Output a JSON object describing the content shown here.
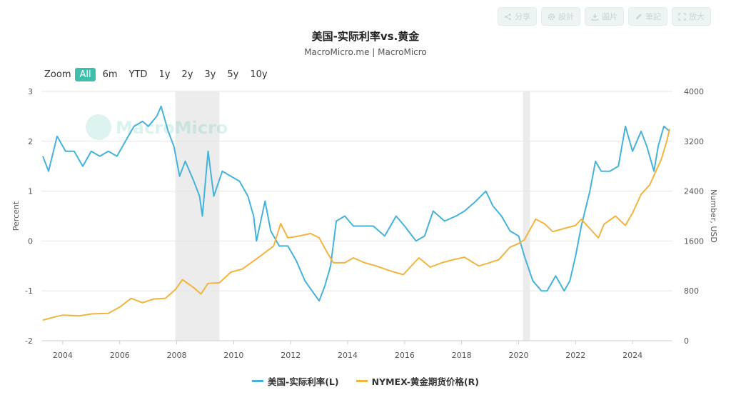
{
  "toolbar": [
    {
      "label": "分享",
      "icon": "share-icon"
    },
    {
      "label": "設計",
      "icon": "gear-icon"
    },
    {
      "label": "圖片",
      "icon": "download-icon"
    },
    {
      "label": "筆記",
      "icon": "pencil-icon"
    },
    {
      "label": "放大",
      "icon": "expand-icon"
    }
  ],
  "header": {
    "title": "美国-实际利率vs.黄金",
    "subtitle": "MacroMicro.me | MacroMicro"
  },
  "watermark": "MacroMicro",
  "zoom": {
    "label": "Zoom",
    "buttons": [
      "All",
      "6m",
      "YTD",
      "1y",
      "2y",
      "3y",
      "5y",
      "10y"
    ],
    "active": "All"
  },
  "colors": {
    "real_rate": "#45b3d9",
    "gold": "#f2b43c",
    "recession": "#ececec",
    "grid": "#e6e6e6",
    "zoom_active": "#3dbfae"
  },
  "chart_data": {
    "type": "line",
    "title": "美国-实际利率vs.黄金",
    "subtitle": "MacroMicro.me | MacroMicro",
    "x": {
      "range": [
        2003.25,
        2025.4
      ],
      "tick_labels": [
        "2004",
        "2006",
        "2008",
        "2010",
        "2012",
        "2014",
        "2016",
        "2018",
        "2020",
        "2022",
        "2024"
      ]
    },
    "y_left": {
      "label": "Percent",
      "range": [
        -2,
        3
      ],
      "tick_labels": [
        "-2",
        "-1",
        "0",
        "1",
        "2",
        "3"
      ]
    },
    "y_right": {
      "label": "Number, USD",
      "range": [
        0,
        4000
      ],
      "tick_labels": [
        "0",
        "800",
        "1600",
        "2400",
        "3200",
        "4000"
      ]
    },
    "shaded_periods": [
      [
        2007.95,
        2009.5
      ],
      [
        2020.15,
        2020.4
      ]
    ],
    "grid": true,
    "legend_position": "bottom",
    "series": [
      {
        "name": "美国-实际利率(L)",
        "axis": "left",
        "points": [
          [
            2003.3,
            1.7
          ],
          [
            2003.5,
            1.4
          ],
          [
            2003.8,
            2.1
          ],
          [
            2004.1,
            1.8
          ],
          [
            2004.4,
            1.8
          ],
          [
            2004.7,
            1.5
          ],
          [
            2005.0,
            1.8
          ],
          [
            2005.3,
            1.7
          ],
          [
            2005.6,
            1.8
          ],
          [
            2005.9,
            1.7
          ],
          [
            2006.2,
            2.0
          ],
          [
            2006.5,
            2.3
          ],
          [
            2006.8,
            2.4
          ],
          [
            2007.0,
            2.3
          ],
          [
            2007.3,
            2.5
          ],
          [
            2007.45,
            2.7
          ],
          [
            2007.7,
            2.2
          ],
          [
            2007.9,
            1.9
          ],
          [
            2008.1,
            1.3
          ],
          [
            2008.3,
            1.6
          ],
          [
            2008.6,
            1.2
          ],
          [
            2008.8,
            0.9
          ],
          [
            2008.9,
            0.5
          ],
          [
            2009.1,
            1.8
          ],
          [
            2009.3,
            0.9
          ],
          [
            2009.6,
            1.4
          ],
          [
            2009.9,
            1.3
          ],
          [
            2010.2,
            1.2
          ],
          [
            2010.5,
            0.9
          ],
          [
            2010.7,
            0.5
          ],
          [
            2010.8,
            0.0
          ],
          [
            2011.1,
            0.8
          ],
          [
            2011.3,
            0.2
          ],
          [
            2011.6,
            -0.1
          ],
          [
            2011.9,
            -0.1
          ],
          [
            2012.2,
            -0.4
          ],
          [
            2012.5,
            -0.8
          ],
          [
            2012.75,
            -1.0
          ],
          [
            2013.0,
            -1.2
          ],
          [
            2013.2,
            -0.9
          ],
          [
            2013.4,
            -0.5
          ],
          [
            2013.6,
            0.4
          ],
          [
            2013.9,
            0.5
          ],
          [
            2014.2,
            0.3
          ],
          [
            2014.5,
            0.3
          ],
          [
            2014.9,
            0.3
          ],
          [
            2015.3,
            0.1
          ],
          [
            2015.7,
            0.5
          ],
          [
            2016.0,
            0.3
          ],
          [
            2016.4,
            0.0
          ],
          [
            2016.7,
            0.1
          ],
          [
            2017.0,
            0.6
          ],
          [
            2017.4,
            0.4
          ],
          [
            2017.8,
            0.5
          ],
          [
            2018.1,
            0.6
          ],
          [
            2018.5,
            0.8
          ],
          [
            2018.85,
            1.0
          ],
          [
            2019.1,
            0.7
          ],
          [
            2019.4,
            0.5
          ],
          [
            2019.7,
            0.2
          ],
          [
            2020.0,
            0.1
          ],
          [
            2020.2,
            -0.3
          ],
          [
            2020.5,
            -0.8
          ],
          [
            2020.8,
            -1.0
          ],
          [
            2021.0,
            -1.0
          ],
          [
            2021.3,
            -0.7
          ],
          [
            2021.6,
            -1.0
          ],
          [
            2021.8,
            -0.8
          ],
          [
            2022.0,
            -0.3
          ],
          [
            2022.2,
            0.3
          ],
          [
            2022.5,
            1.0
          ],
          [
            2022.7,
            1.6
          ],
          [
            2022.9,
            1.4
          ],
          [
            2023.2,
            1.4
          ],
          [
            2023.5,
            1.5
          ],
          [
            2023.75,
            2.3
          ],
          [
            2024.0,
            1.8
          ],
          [
            2024.3,
            2.2
          ],
          [
            2024.5,
            1.9
          ],
          [
            2024.75,
            1.4
          ],
          [
            2024.9,
            1.9
          ],
          [
            2025.1,
            2.3
          ],
          [
            2025.3,
            2.2
          ]
        ]
      },
      {
        "name": "NYMEX-黄金期货价格(R)",
        "axis": "right",
        "points": [
          [
            2003.3,
            330
          ],
          [
            2003.7,
            380
          ],
          [
            2004.0,
            410
          ],
          [
            2004.6,
            400
          ],
          [
            2005.0,
            430
          ],
          [
            2005.6,
            440
          ],
          [
            2006.0,
            540
          ],
          [
            2006.4,
            680
          ],
          [
            2006.8,
            610
          ],
          [
            2007.2,
            670
          ],
          [
            2007.6,
            680
          ],
          [
            2007.95,
            820
          ],
          [
            2008.2,
            980
          ],
          [
            2008.6,
            850
          ],
          [
            2008.85,
            750
          ],
          [
            2009.1,
            920
          ],
          [
            2009.5,
            930
          ],
          [
            2009.9,
            1100
          ],
          [
            2010.3,
            1150
          ],
          [
            2010.7,
            1280
          ],
          [
            2011.0,
            1380
          ],
          [
            2011.4,
            1520
          ],
          [
            2011.65,
            1880
          ],
          [
            2011.9,
            1650
          ],
          [
            2012.3,
            1680
          ],
          [
            2012.7,
            1720
          ],
          [
            2013.0,
            1650
          ],
          [
            2013.3,
            1400
          ],
          [
            2013.5,
            1250
          ],
          [
            2013.9,
            1250
          ],
          [
            2014.2,
            1330
          ],
          [
            2014.6,
            1250
          ],
          [
            2015.0,
            1200
          ],
          [
            2015.5,
            1120
          ],
          [
            2015.95,
            1060
          ],
          [
            2016.5,
            1330
          ],
          [
            2016.9,
            1180
          ],
          [
            2017.3,
            1250
          ],
          [
            2017.7,
            1300
          ],
          [
            2018.1,
            1340
          ],
          [
            2018.6,
            1200
          ],
          [
            2018.9,
            1240
          ],
          [
            2019.3,
            1300
          ],
          [
            2019.7,
            1500
          ],
          [
            2020.0,
            1560
          ],
          [
            2020.2,
            1620
          ],
          [
            2020.6,
            1950
          ],
          [
            2020.9,
            1880
          ],
          [
            2021.2,
            1750
          ],
          [
            2021.6,
            1800
          ],
          [
            2022.0,
            1850
          ],
          [
            2022.2,
            1950
          ],
          [
            2022.8,
            1650
          ],
          [
            2023.0,
            1870
          ],
          [
            2023.4,
            2000
          ],
          [
            2023.75,
            1850
          ],
          [
            2024.0,
            2050
          ],
          [
            2024.3,
            2350
          ],
          [
            2024.6,
            2500
          ],
          [
            2024.85,
            2750
          ],
          [
            2025.0,
            2900
          ],
          [
            2025.2,
            3200
          ],
          [
            2025.3,
            3400
          ]
        ]
      }
    ]
  },
  "legend": [
    {
      "label": "美国-实际利率(L)"
    },
    {
      "label": "NYMEX-黄金期货价格(R)"
    }
  ]
}
